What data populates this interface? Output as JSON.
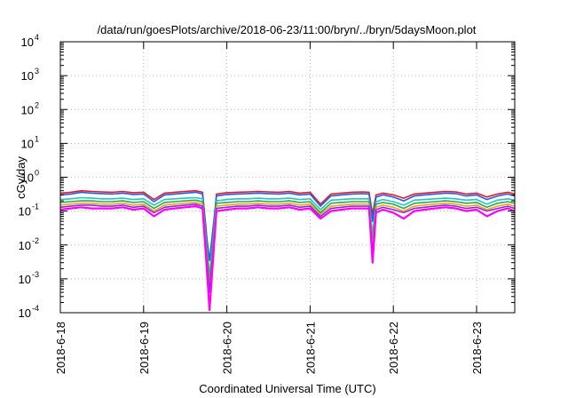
{
  "chart_data": {
    "type": "line",
    "title": "/data/run/goesPlots/archive/2018-06-23/11:00/bryn/../bryn/5daysMoon.plot",
    "xlabel": "Coordinated Universal Time (UTC)",
    "ylabel": "cGy/day",
    "yscale": "log",
    "ylim": [
      0.0001,
      10000
    ],
    "xlim": [
      "2018-06-18",
      "2018-06-23 11:00"
    ],
    "grid": true,
    "legend": "none",
    "x_ticks": [
      "2018-6-18",
      "2018-6-19",
      "2018-6-20",
      "2018-6-21",
      "2018-6-22",
      "2018-6-23"
    ],
    "y_ticks": [
      {
        "base": "10",
        "exp": "-4"
      },
      {
        "base": "10",
        "exp": "-3"
      },
      {
        "base": "10",
        "exp": "-2"
      },
      {
        "base": "10",
        "exp": "-1"
      },
      {
        "base": "10",
        "exp": "0"
      },
      {
        "base": "10",
        "exp": "1"
      },
      {
        "base": "10",
        "exp": "2"
      },
      {
        "base": "10",
        "exp": "3"
      },
      {
        "base": "10",
        "exp": "4"
      }
    ],
    "x": [
      "2018-06-18 00:00",
      "2018-06-18 03:00",
      "2018-06-18 06:00",
      "2018-06-18 09:00",
      "2018-06-18 12:00",
      "2018-06-18 15:00",
      "2018-06-18 18:00",
      "2018-06-18 21:00",
      "2018-06-19 00:00",
      "2018-06-19 03:00",
      "2018-06-19 06:00",
      "2018-06-19 09:00",
      "2018-06-19 12:00",
      "2018-06-19 15:00",
      "2018-06-19 17:00",
      "2018-06-19 18:00",
      "2018-06-19 19:00",
      "2018-06-19 21:00",
      "2018-06-20 00:00",
      "2018-06-20 03:00",
      "2018-06-20 06:00",
      "2018-06-20 09:00",
      "2018-06-20 12:00",
      "2018-06-20 15:00",
      "2018-06-20 18:00",
      "2018-06-20 21:00",
      "2018-06-21 00:00",
      "2018-06-21 03:00",
      "2018-06-21 06:00",
      "2018-06-21 09:00",
      "2018-06-21 12:00",
      "2018-06-21 15:00",
      "2018-06-21 17:00",
      "2018-06-21 18:00",
      "2018-06-21 19:00",
      "2018-06-21 21:00",
      "2018-06-22 00:00",
      "2018-06-22 03:00",
      "2018-06-22 06:00",
      "2018-06-22 09:00",
      "2018-06-22 12:00",
      "2018-06-22 15:00",
      "2018-06-22 18:00",
      "2018-06-22 21:00",
      "2018-06-23 00:00",
      "2018-06-23 03:00",
      "2018-06-23 06:00",
      "2018-06-23 09:00",
      "2018-06-23 11:00"
    ],
    "series": [
      {
        "color": "#e8172f",
        "values": [
          0.34,
          0.36,
          0.4,
          0.38,
          0.37,
          0.36,
          0.38,
          0.35,
          0.36,
          0.22,
          0.34,
          0.36,
          0.38,
          0.4,
          0.36,
          0.03,
          0.0009,
          0.32,
          0.35,
          0.36,
          0.37,
          0.38,
          0.37,
          0.36,
          0.38,
          0.34,
          0.36,
          0.16,
          0.32,
          0.34,
          0.36,
          0.37,
          0.36,
          0.08,
          0.3,
          0.34,
          0.3,
          0.24,
          0.32,
          0.34,
          0.36,
          0.38,
          0.37,
          0.32,
          0.34,
          0.26,
          0.32,
          0.36,
          0.32
        ]
      },
      {
        "color": "#1f5fe0",
        "values": [
          0.3,
          0.32,
          0.36,
          0.34,
          0.33,
          0.32,
          0.34,
          0.31,
          0.32,
          0.19,
          0.3,
          0.32,
          0.34,
          0.36,
          0.32,
          0.025,
          0.0035,
          0.28,
          0.31,
          0.32,
          0.33,
          0.34,
          0.33,
          0.32,
          0.34,
          0.3,
          0.32,
          0.14,
          0.28,
          0.3,
          0.32,
          0.33,
          0.32,
          0.05,
          0.26,
          0.3,
          0.26,
          0.2,
          0.28,
          0.3,
          0.32,
          0.34,
          0.33,
          0.28,
          0.3,
          0.22,
          0.28,
          0.32,
          0.28
        ]
      },
      {
        "color": "#1fc7c7",
        "values": [
          0.22,
          0.23,
          0.25,
          0.24,
          0.23,
          0.23,
          0.24,
          0.22,
          0.23,
          0.15,
          0.22,
          0.23,
          0.24,
          0.25,
          0.23,
          0.015,
          0.0012,
          0.2,
          0.22,
          0.23,
          0.23,
          0.24,
          0.23,
          0.23,
          0.24,
          0.22,
          0.23,
          0.11,
          0.21,
          0.22,
          0.23,
          0.23,
          0.23,
          0.02,
          0.19,
          0.22,
          0.19,
          0.15,
          0.21,
          0.22,
          0.23,
          0.24,
          0.23,
          0.21,
          0.22,
          0.16,
          0.21,
          0.23,
          0.21
        ]
      },
      {
        "color": "#2fa84a",
        "values": [
          0.18,
          0.19,
          0.2,
          0.2,
          0.19,
          0.19,
          0.2,
          0.18,
          0.19,
          0.12,
          0.18,
          0.19,
          0.2,
          0.21,
          0.19,
          0.012,
          0.0008,
          0.17,
          0.18,
          0.19,
          0.19,
          0.2,
          0.19,
          0.19,
          0.2,
          0.18,
          0.19,
          0.09,
          0.17,
          0.18,
          0.19,
          0.19,
          0.19,
          0.012,
          0.16,
          0.18,
          0.16,
          0.12,
          0.17,
          0.18,
          0.19,
          0.2,
          0.19,
          0.17,
          0.18,
          0.13,
          0.17,
          0.19,
          0.17
        ]
      },
      {
        "color": "#f0a020",
        "values": [
          0.15,
          0.16,
          0.17,
          0.17,
          0.16,
          0.16,
          0.17,
          0.15,
          0.16,
          0.1,
          0.15,
          0.16,
          0.17,
          0.18,
          0.16,
          0.009,
          0.0005,
          0.14,
          0.15,
          0.16,
          0.16,
          0.17,
          0.16,
          0.16,
          0.17,
          0.15,
          0.16,
          0.08,
          0.14,
          0.15,
          0.16,
          0.16,
          0.16,
          0.008,
          0.13,
          0.15,
          0.13,
          0.1,
          0.14,
          0.15,
          0.16,
          0.17,
          0.16,
          0.14,
          0.15,
          0.11,
          0.14,
          0.16,
          0.14
        ]
      },
      {
        "color": "#8a2be2",
        "values": [
          0.13,
          0.14,
          0.15,
          0.15,
          0.14,
          0.14,
          0.15,
          0.13,
          0.14,
          0.09,
          0.13,
          0.14,
          0.15,
          0.16,
          0.14,
          0.007,
          0.0004,
          0.12,
          0.13,
          0.14,
          0.14,
          0.15,
          0.14,
          0.14,
          0.15,
          0.13,
          0.14,
          0.07,
          0.12,
          0.13,
          0.14,
          0.14,
          0.14,
          0.006,
          0.11,
          0.13,
          0.11,
          0.09,
          0.12,
          0.13,
          0.14,
          0.15,
          0.14,
          0.12,
          0.13,
          0.1,
          0.12,
          0.14,
          0.12
        ]
      },
      {
        "color": "#ff00ff",
        "values": [
          0.11,
          0.12,
          0.13,
          0.12,
          0.12,
          0.12,
          0.13,
          0.11,
          0.12,
          0.07,
          0.11,
          0.12,
          0.13,
          0.14,
          0.12,
          0.004,
          0.00012,
          0.1,
          0.11,
          0.12,
          0.12,
          0.13,
          0.12,
          0.12,
          0.13,
          0.11,
          0.12,
          0.06,
          0.1,
          0.11,
          0.12,
          0.12,
          0.12,
          0.003,
          0.09,
          0.11,
          0.09,
          0.06,
          0.1,
          0.11,
          0.12,
          0.13,
          0.12,
          0.1,
          0.11,
          0.07,
          0.1,
          0.12,
          0.1
        ]
      }
    ]
  }
}
